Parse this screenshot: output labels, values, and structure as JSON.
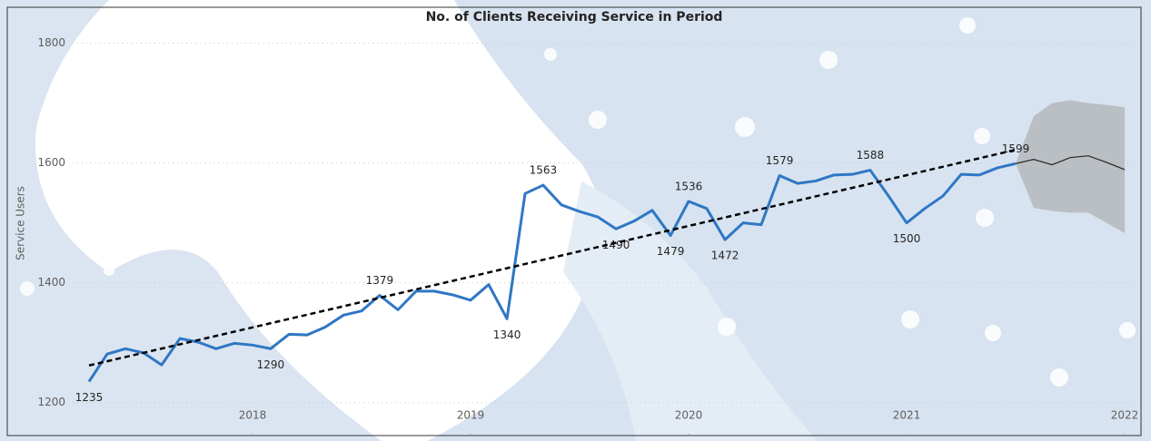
{
  "chart_data": {
    "type": "line",
    "title": "No. of Clients Receiving Service in Period",
    "y_label": "Service Users",
    "x": [
      2017.25,
      2017.333,
      2017.417,
      2017.5,
      2017.583,
      2017.667,
      2017.75,
      2017.833,
      2017.917,
      2018,
      2018.083,
      2018.167,
      2018.25,
      2018.333,
      2018.417,
      2018.5,
      2018.583,
      2018.667,
      2018.75,
      2018.833,
      2018.917,
      2019,
      2019.083,
      2019.167,
      2019.25,
      2019.333,
      2019.417,
      2019.5,
      2019.583,
      2019.667,
      2019.75,
      2019.833,
      2019.917,
      2020,
      2020.083,
      2020.167,
      2020.25,
      2020.333,
      2020.417,
      2020.5,
      2020.583,
      2020.667,
      2020.75,
      2020.833,
      2020.917,
      2021,
      2021.083,
      2021.167,
      2021.25,
      2021.333,
      2021.417,
      2021.5
    ],
    "series": [
      {
        "color": "#2f77c4",
        "values": [
          1235,
          1281,
          1290,
          1283,
          1263,
          1307,
          1301,
          1290,
          1299,
          1296,
          1290,
          1314,
          1313,
          1326,
          1346,
          1353,
          1379,
          1355,
          1386,
          1386,
          1380,
          1371,
          1397,
          1340,
          1549,
          1563,
          1530,
          1519,
          1510,
          1490,
          1503,
          1521,
          1479,
          1536,
          1524,
          1472,
          1500,
          1497,
          1579,
          1566,
          1570,
          1580,
          1581,
          1588,
          1545,
          1500,
          1524,
          1545,
          1581,
          1580,
          1592,
          1599
        ],
        "value_labels": [
          "1235",
          null,
          null,
          null,
          null,
          null,
          null,
          null,
          null,
          null,
          "1290",
          null,
          null,
          null,
          null,
          null,
          "1379",
          null,
          null,
          null,
          null,
          null,
          null,
          "1340",
          null,
          "1563",
          null,
          null,
          null,
          "1490",
          null,
          null,
          "1479",
          "1536",
          null,
          "1472",
          null,
          null,
          "1579",
          null,
          null,
          null,
          null,
          "1588",
          null,
          "1500",
          null,
          null,
          null,
          null,
          null,
          "1599"
        ]
      }
    ],
    "trend": {
      "color": "#000000",
      "x": [
        2017.25,
        2021.5
      ],
      "values": [
        1262,
        1622
      ]
    },
    "forecast": {
      "color": "#252423",
      "band_color": "#a6a6a6",
      "x": [
        2021.5,
        2021.583,
        2021.667,
        2021.75,
        2021.833,
        2021.917,
        2022
      ],
      "values": [
        1599,
        1606,
        1597,
        1609,
        1612,
        1601,
        1589
      ],
      "upper": [
        1599,
        1678,
        1700,
        1705,
        1700,
        1697,
        1693
      ],
      "lower": [
        1599,
        1525,
        1520,
        1517,
        1517,
        1500,
        1483
      ]
    },
    "xlim": [
      2016.875,
      2022.075
    ],
    "ylim": [
      1145,
      1860
    ],
    "xticks": [
      2018,
      2019,
      2020,
      2021,
      2022
    ],
    "yticks": [
      1200,
      1400,
      1600,
      1800
    ],
    "grid": true
  }
}
